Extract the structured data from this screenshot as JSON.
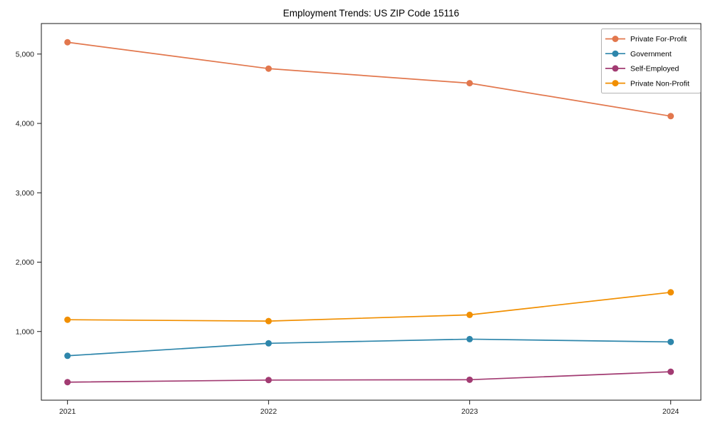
{
  "page": {
    "background": "#ffffff",
    "text_color": "#1a1a1a"
  },
  "chart_data": {
    "type": "line",
    "title": "Employment Trends: US ZIP Code 15116",
    "xlabel": "",
    "ylabel": "",
    "grid": false,
    "legend_position": "upper right",
    "x": [
      2021,
      2022,
      2023,
      2024
    ],
    "x_tick_labels": [
      "2021",
      "2022",
      "2023",
      "2024"
    ],
    "y_ticks": [
      1000,
      2000,
      3000,
      4000,
      5000
    ],
    "y_tick_labels": [
      "1,000",
      "2,000",
      "3,000",
      "4,000",
      "5,000"
    ],
    "xlim": [
      2020.87,
      2024.15
    ],
    "ylim": [
      10,
      5440
    ],
    "series": [
      {
        "name": "Private For-Profit",
        "color": "#E2774D",
        "marker": "circle",
        "values": [
          5170,
          4790,
          4580,
          4105
        ]
      },
      {
        "name": "Government",
        "color": "#2E86AB",
        "marker": "circle",
        "values": [
          650,
          830,
          890,
          850
        ]
      },
      {
        "name": "Self-Employed",
        "color": "#A23B72",
        "marker": "circle",
        "values": [
          270,
          300,
          305,
          420
        ]
      },
      {
        "name": "Private Non-Profit",
        "color": "#F18F01",
        "marker": "circle",
        "values": [
          1170,
          1150,
          1240,
          1565
        ]
      }
    ]
  }
}
